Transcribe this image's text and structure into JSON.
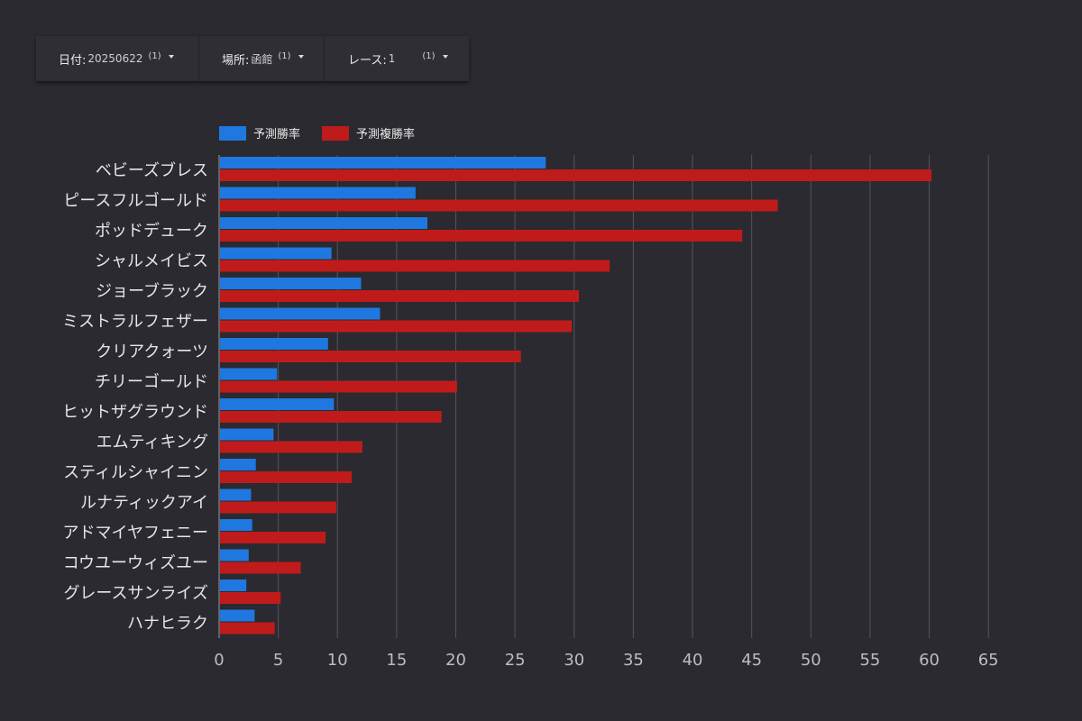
{
  "filters": {
    "date": {
      "label": "日付:",
      "value": "20250622",
      "count": "(1)"
    },
    "place": {
      "label": "場所:",
      "value": "函館",
      "count": "(1)"
    },
    "race": {
      "label": "レース:",
      "value": "1",
      "count": "(1)"
    }
  },
  "colors": {
    "background": "#2b2a30",
    "win": "#1f78e0",
    "place": "#c01b1b",
    "grid": "#55545a",
    "text": "#e6e6e6",
    "tick": "#bdbdbd"
  },
  "chart_data": {
    "type": "bar",
    "orientation": "horizontal",
    "categories": [
      "ベビーズブレス",
      "ピースフルゴールド",
      "ポッドデューク",
      "シャルメイビス",
      "ジョーブラック",
      "ミストラルフェザー",
      "クリアクォーツ",
      "チリーゴールド",
      "ヒットザグラウンド",
      "エムティキング",
      "スティルシャイニン",
      "ルナティックアイ",
      "アドマイヤフェニー",
      "コウユーウィズユー",
      "グレースサンライズ",
      "ハナヒラク"
    ],
    "series": [
      {
        "name": "予測勝率",
        "color": "#1f78e0",
        "values": [
          27.6,
          16.6,
          17.6,
          9.5,
          12.0,
          13.6,
          9.2,
          4.9,
          9.7,
          4.6,
          3.1,
          2.7,
          2.8,
          2.5,
          2.3,
          3.0
        ]
      },
      {
        "name": "予測複勝率",
        "color": "#c01b1b",
        "values": [
          60.2,
          47.2,
          44.2,
          33.0,
          30.4,
          29.8,
          25.5,
          20.1,
          18.8,
          12.1,
          11.2,
          9.9,
          9.0,
          6.9,
          5.2,
          4.7
        ]
      }
    ],
    "xlim": [
      0,
      67.5
    ],
    "xticks": [
      "0",
      "5",
      "10",
      "15",
      "20",
      "25",
      "30",
      "35",
      "40",
      "45",
      "50",
      "55",
      "60",
      "65"
    ],
    "legend_position": "top-left",
    "grid": true
  }
}
